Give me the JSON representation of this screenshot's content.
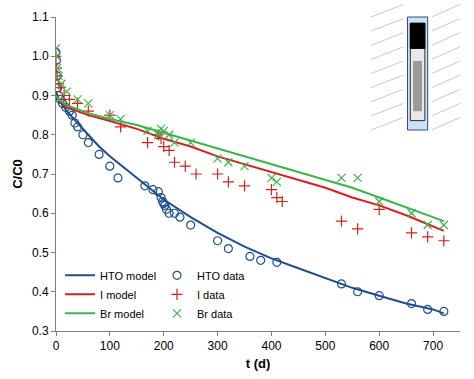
{
  "chart_data": {
    "type": "scatter",
    "x_label": "t (d)",
    "y_label": "C/C0",
    "xlim": [
      0,
      750
    ],
    "xticks": [
      0,
      100,
      200,
      300,
      400,
      500,
      600,
      700
    ],
    "ylim": [
      0.3,
      1.1
    ],
    "yticks": [
      0.3,
      0.4,
      0.5,
      0.6,
      0.7,
      0.8,
      0.9,
      {
        "value": 1,
        "label": "1.0"
      },
      1.1
    ],
    "grid": false,
    "legend": "lower left",
    "series": [
      {
        "name": "HTO model",
        "type": "line",
        "color": "#1f4e8c",
        "line_style": "solid",
        "x": [
          0,
          5,
          10,
          20,
          40,
          60,
          80,
          100,
          150,
          200,
          250,
          300,
          350,
          400,
          450,
          500,
          550,
          600,
          650,
          700,
          720
        ],
        "values": [
          0.91,
          0.89,
          0.88,
          0.86,
          0.83,
          0.8,
          0.77,
          0.745,
          0.69,
          0.635,
          0.59,
          0.55,
          0.515,
          0.485,
          0.46,
          0.435,
          0.41,
          0.39,
          0.37,
          0.355,
          0.345
        ]
      },
      {
        "name": "HTO data",
        "type": "scatter",
        "color": "#1f4e8c",
        "marker": "open circle",
        "x": [
          0,
          1,
          2,
          3,
          5,
          8,
          12,
          18,
          25,
          30,
          35,
          40,
          50,
          60,
          80,
          100,
          115,
          165,
          180,
          190,
          195,
          198,
          200,
          202,
          205,
          210,
          220,
          230,
          250,
          300,
          320,
          360,
          380,
          410,
          530,
          560,
          600,
          660,
          690,
          720
        ],
        "values": [
          1.01,
          0.99,
          0.95,
          0.92,
          0.9,
          0.89,
          0.88,
          0.87,
          0.86,
          0.85,
          0.83,
          0.82,
          0.8,
          0.78,
          0.75,
          0.72,
          0.69,
          0.67,
          0.66,
          0.655,
          0.64,
          0.63,
          0.625,
          0.62,
          0.61,
          0.6,
          0.6,
          0.59,
          0.57,
          0.53,
          0.51,
          0.49,
          0.48,
          0.475,
          0.42,
          0.4,
          0.39,
          0.37,
          0.355,
          0.35
        ]
      },
      {
        "name": "I model",
        "type": "line",
        "color": "#d62020",
        "line_style": "solid",
        "x": [
          0,
          5,
          10,
          20,
          40,
          60,
          100,
          150,
          200,
          250,
          300,
          350,
          400,
          450,
          500,
          550,
          600,
          650,
          700,
          720
        ],
        "values": [
          0.9,
          0.89,
          0.88,
          0.87,
          0.86,
          0.85,
          0.835,
          0.815,
          0.79,
          0.77,
          0.745,
          0.725,
          0.705,
          0.685,
          0.665,
          0.64,
          0.62,
          0.595,
          0.565,
          0.555
        ]
      },
      {
        "name": "I data",
        "type": "scatter",
        "color": "#d62020",
        "marker": "plus",
        "x": [
          0,
          1,
          2,
          5,
          8,
          15,
          25,
          40,
          60,
          100,
          120,
          170,
          190,
          195,
          200,
          210,
          220,
          240,
          260,
          300,
          320,
          350,
          400,
          410,
          420,
          530,
          560,
          600,
          660,
          690,
          720
        ],
        "values": [
          1.0,
          0.97,
          0.95,
          0.93,
          0.92,
          0.9,
          0.89,
          0.88,
          0.86,
          0.85,
          0.82,
          0.78,
          0.8,
          0.79,
          0.77,
          0.76,
          0.73,
          0.72,
          0.7,
          0.7,
          0.68,
          0.67,
          0.66,
          0.64,
          0.63,
          0.58,
          0.56,
          0.61,
          0.55,
          0.54,
          0.53
        ]
      },
      {
        "name": "Br model",
        "type": "line",
        "color": "#3cb44b",
        "line_style": "solid",
        "x": [
          0,
          5,
          10,
          20,
          40,
          60,
          100,
          150,
          200,
          250,
          300,
          350,
          400,
          450,
          500,
          550,
          600,
          650,
          700,
          720
        ],
        "values": [
          0.9,
          0.89,
          0.885,
          0.875,
          0.865,
          0.855,
          0.84,
          0.825,
          0.805,
          0.785,
          0.765,
          0.745,
          0.725,
          0.705,
          0.685,
          0.665,
          0.64,
          0.615,
          0.59,
          0.58
        ]
      },
      {
        "name": "Br data",
        "type": "scatter",
        "color": "#3cb44b",
        "marker": "cross",
        "x": [
          0,
          1,
          2,
          5,
          10,
          20,
          40,
          60,
          100,
          120,
          170,
          190,
          195,
          200,
          210,
          220,
          250,
          300,
          320,
          350,
          400,
          410,
          530,
          560,
          600,
          660,
          690,
          720
        ],
        "values": [
          1.02,
          1.0,
          0.97,
          0.95,
          0.93,
          0.91,
          0.89,
          0.88,
          0.85,
          0.84,
          0.81,
          0.8,
          0.815,
          0.81,
          0.8,
          0.78,
          0.78,
          0.74,
          0.73,
          0.72,
          0.69,
          0.68,
          0.69,
          0.69,
          0.63,
          0.6,
          0.57,
          0.57
        ]
      }
    ]
  }
}
